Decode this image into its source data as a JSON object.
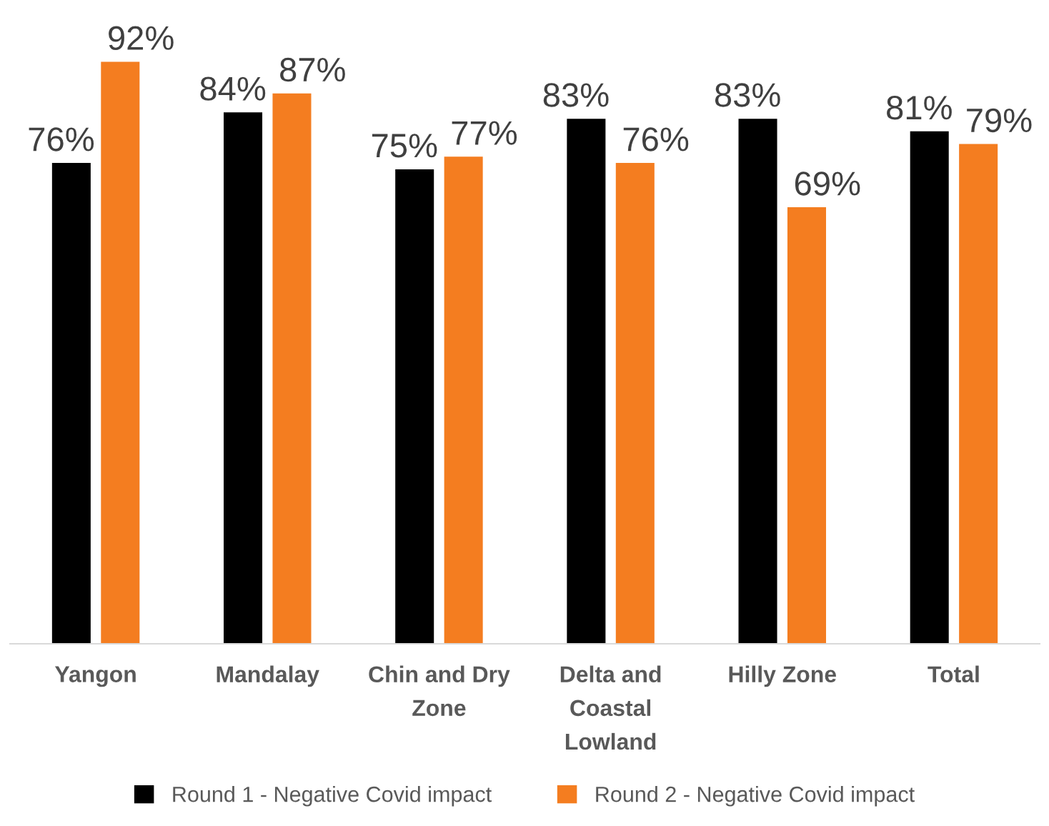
{
  "chart_data": {
    "type": "bar",
    "categories": [
      "Yangon",
      "Mandalay",
      "Chin and Dry Zone",
      "Delta and Coastal Lowland",
      "Hilly Zone",
      "Total"
    ],
    "series": [
      {
        "name": "Round 1 - Negative Covid impact",
        "color": "#000000",
        "values": [
          76,
          84,
          75,
          83,
          83,
          81
        ],
        "value_labels": [
          "76%",
          "84%",
          "75%",
          "83%",
          "83%",
          "81%"
        ]
      },
      {
        "name": "Round 2 - Negative Covid impact",
        "color": "#f47d20",
        "values": [
          92,
          87,
          77,
          76,
          69,
          79
        ],
        "value_labels": [
          "92%",
          "87%",
          "77%",
          "76%",
          "69%",
          "79%"
        ]
      }
    ],
    "tick_labels": "x",
    "grid": false,
    "legend": "bottom"
  }
}
